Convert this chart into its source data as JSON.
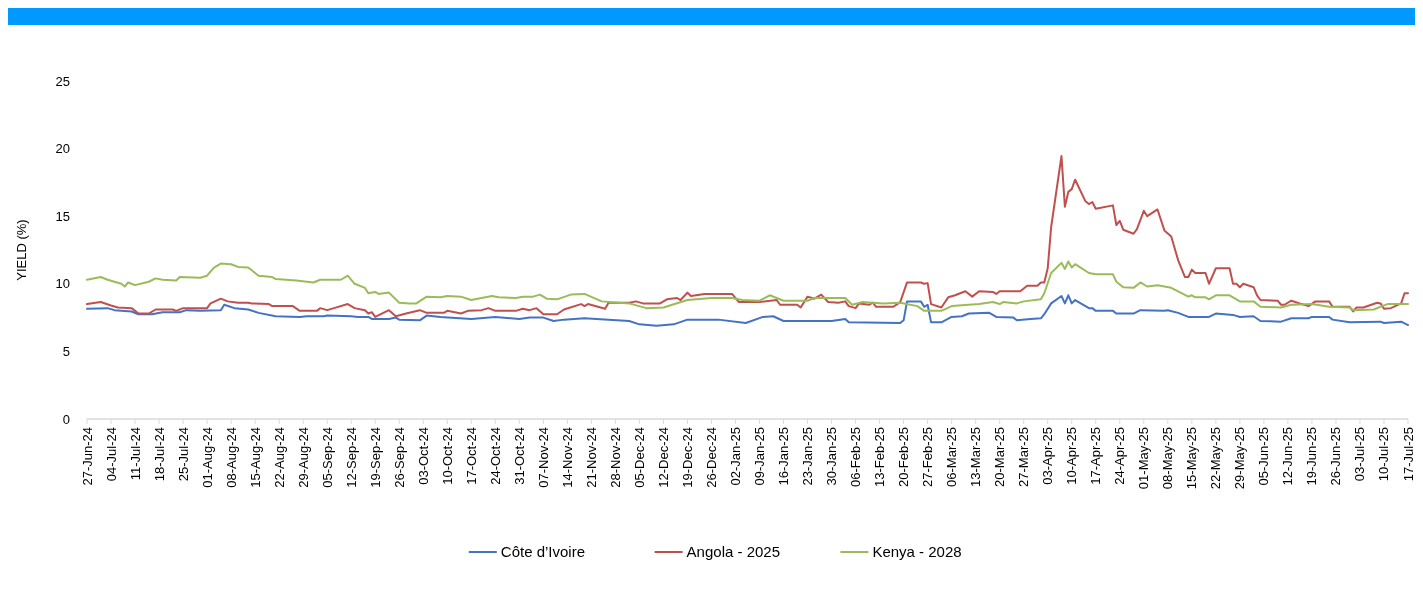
{
  "chart_data": {
    "type": "line",
    "ylabel": "YIELD (%)",
    "ylim": [
      0,
      25
    ],
    "yticks": [
      0,
      5,
      10,
      15,
      20,
      25
    ],
    "xlim": [
      "2024-06-27",
      "2025-07-17"
    ],
    "xticks": [
      {
        "value": "2024-06-27",
        "label": "27-Jun-24"
      },
      {
        "value": "2024-07-04",
        "label": "04-Jul-24"
      },
      {
        "value": "2024-07-11",
        "label": "11-Jul-24"
      },
      {
        "value": "2024-07-18",
        "label": "18-Jul-24"
      },
      {
        "value": "2024-07-25",
        "label": "25-Jul-24"
      },
      {
        "value": "2024-08-01",
        "label": "01-Aug-24"
      },
      {
        "value": "2024-08-08",
        "label": "08-Aug-24"
      },
      {
        "value": "2024-08-15",
        "label": "15-Aug-24"
      },
      {
        "value": "2024-08-22",
        "label": "22-Aug-24"
      },
      {
        "value": "2024-08-29",
        "label": "29-Aug-24"
      },
      {
        "value": "2024-09-05",
        "label": "05-Sep-24"
      },
      {
        "value": "2024-09-12",
        "label": "12-Sep-24"
      },
      {
        "value": "2024-09-19",
        "label": "19-Sep-24"
      },
      {
        "value": "2024-09-26",
        "label": "26-Sep-24"
      },
      {
        "value": "2024-10-03",
        "label": "03-Oct-24"
      },
      {
        "value": "2024-10-10",
        "label": "10-Oct-24"
      },
      {
        "value": "2024-10-17",
        "label": "17-Oct-24"
      },
      {
        "value": "2024-10-24",
        "label": "24-Oct-24"
      },
      {
        "value": "2024-10-31",
        "label": "31-Oct-24"
      },
      {
        "value": "2024-11-07",
        "label": "07-Nov-24"
      },
      {
        "value": "2024-11-14",
        "label": "14-Nov-24"
      },
      {
        "value": "2024-11-21",
        "label": "21-Nov-24"
      },
      {
        "value": "2024-11-28",
        "label": "28-Nov-24"
      },
      {
        "value": "2024-12-05",
        "label": "05-Dec-24"
      },
      {
        "value": "2024-12-12",
        "label": "12-Dec-24"
      },
      {
        "value": "2024-12-19",
        "label": "19-Dec-24"
      },
      {
        "value": "2024-12-26",
        "label": "26-Dec-24"
      },
      {
        "value": "2025-01-02",
        "label": "02-Jan-25"
      },
      {
        "value": "2025-01-09",
        "label": "09-Jan-25"
      },
      {
        "value": "2025-01-16",
        "label": "16-Jan-25"
      },
      {
        "value": "2025-01-23",
        "label": "23-Jan-25"
      },
      {
        "value": "2025-01-30",
        "label": "30-Jan-25"
      },
      {
        "value": "2025-02-06",
        "label": "06-Feb-25"
      },
      {
        "value": "2025-02-13",
        "label": "13-Feb-25"
      },
      {
        "value": "2025-02-20",
        "label": "20-Feb-25"
      },
      {
        "value": "2025-02-27",
        "label": "27-Feb-25"
      },
      {
        "value": "2025-03-06",
        "label": "06-Mar-25"
      },
      {
        "value": "2025-03-13",
        "label": "13-Mar-25"
      },
      {
        "value": "2025-03-20",
        "label": "20-Mar-25"
      },
      {
        "value": "2025-03-27",
        "label": "27-Mar-25"
      },
      {
        "value": "2025-04-03",
        "label": "03-Apr-25"
      },
      {
        "value": "2025-04-10",
        "label": "10-Apr-25"
      },
      {
        "value": "2025-04-17",
        "label": "17-Apr-25"
      },
      {
        "value": "2025-04-24",
        "label": "24-Apr-25"
      },
      {
        "value": "2025-05-01",
        "label": "01-May-25"
      },
      {
        "value": "2025-05-08",
        "label": "08-May-25"
      },
      {
        "value": "2025-05-15",
        "label": "15-May-25"
      },
      {
        "value": "2025-05-22",
        "label": "22-May-25"
      },
      {
        "value": "2025-05-29",
        "label": "29-May-25"
      },
      {
        "value": "2025-06-05",
        "label": "05-Jun-25"
      },
      {
        "value": "2025-06-12",
        "label": "12-Jun-25"
      },
      {
        "value": "2025-06-19",
        "label": "19-Jun-25"
      },
      {
        "value": "2025-06-26",
        "label": "26-Jun-25"
      },
      {
        "value": "2025-07-03",
        "label": "03-Jul-25"
      },
      {
        "value": "2025-07-10",
        "label": "10-Jul-25"
      },
      {
        "value": "2025-07-17",
        "label": "17-Jul-25"
      }
    ],
    "grid": false,
    "legend": "bottom",
    "marker": "none",
    "line_style": "solid",
    "series": [
      {
        "name": "Côte d’Ivoire",
        "color": "#4472c4",
        "x": [
          "2024-06-27",
          "2024-07-03",
          "2024-07-05",
          "2024-07-10",
          "2024-07-12",
          "2024-07-16",
          "2024-07-19",
          "2024-07-24",
          "2024-07-26",
          "2024-07-30",
          "2024-08-05",
          "2024-08-06",
          "2024-08-09",
          "2024-08-13",
          "2024-08-16",
          "2024-08-21",
          "2024-08-28",
          "2024-08-30",
          "2024-09-04",
          "2024-09-05",
          "2024-09-12",
          "2024-09-14",
          "2024-09-17",
          "2024-09-18",
          "2024-09-23",
          "2024-09-25",
          "2024-09-26",
          "2024-10-02",
          "2024-10-04",
          "2024-10-08",
          "2024-10-17",
          "2024-10-24",
          "2024-10-31",
          "2024-11-03",
          "2024-11-07",
          "2024-11-10",
          "2024-11-13",
          "2024-11-19",
          "2024-11-26",
          "2024-12-02",
          "2024-12-05",
          "2024-12-10",
          "2024-12-15",
          "2024-12-19",
          "2024-12-28",
          "2025-01-05",
          "2025-01-10",
          "2025-01-13",
          "2025-01-16",
          "2025-01-30",
          "2025-02-03",
          "2025-02-04",
          "2025-02-19",
          "2025-02-20",
          "2025-02-21",
          "2025-02-25",
          "2025-02-26",
          "2025-02-27",
          "2025-02-28",
          "2025-03-03",
          "2025-03-06",
          "2025-03-09",
          "2025-03-11",
          "2025-03-17",
          "2025-03-19",
          "2025-03-24",
          "2025-03-25",
          "2025-03-29",
          "2025-04-01",
          "2025-04-02",
          "2025-04-04",
          "2025-04-07",
          "2025-04-08",
          "2025-04-09",
          "2025-04-10",
          "2025-04-11",
          "2025-04-15",
          "2025-04-16",
          "2025-04-17",
          "2025-04-22",
          "2025-04-23",
          "2025-04-28",
          "2025-04-30",
          "2025-05-07",
          "2025-05-08",
          "2025-05-11",
          "2025-05-14",
          "2025-05-20",
          "2025-05-22",
          "2025-05-27",
          "2025-05-29",
          "2025-06-02",
          "2025-06-04",
          "2025-06-10",
          "2025-06-13",
          "2025-06-18",
          "2025-06-19",
          "2025-06-24",
          "2025-06-25",
          "2025-06-30",
          "2025-07-09",
          "2025-07-10",
          "2025-07-15",
          "2025-07-17"
        ],
        "values": [
          8.15,
          8.2,
          8.05,
          7.95,
          7.75,
          7.75,
          7.9,
          7.9,
          8.05,
          8.0,
          8.05,
          8.45,
          8.2,
          8.1,
          7.85,
          7.6,
          7.55,
          7.6,
          7.6,
          7.65,
          7.6,
          7.55,
          7.55,
          7.4,
          7.4,
          7.5,
          7.35,
          7.3,
          7.65,
          7.55,
          7.4,
          7.55,
          7.4,
          7.5,
          7.5,
          7.25,
          7.35,
          7.45,
          7.35,
          7.25,
          7.0,
          6.9,
          7.0,
          7.35,
          7.35,
          7.1,
          7.55,
          7.6,
          7.25,
          7.25,
          7.4,
          7.15,
          7.1,
          7.3,
          8.7,
          8.7,
          8.3,
          8.45,
          7.15,
          7.15,
          7.55,
          7.6,
          7.8,
          7.85,
          7.55,
          7.5,
          7.3,
          7.4,
          7.45,
          7.75,
          8.55,
          9.1,
          8.55,
          9.15,
          8.55,
          8.8,
          8.2,
          8.2,
          8.0,
          8.0,
          7.8,
          7.8,
          8.05,
          8.0,
          8.05,
          7.85,
          7.55,
          7.55,
          7.8,
          7.7,
          7.55,
          7.6,
          7.25,
          7.2,
          7.45,
          7.45,
          7.55,
          7.55,
          7.35,
          7.15,
          7.2,
          7.1,
          7.2,
          6.95
        ]
      },
      {
        "name": "Angola - 2025",
        "color": "#c0504d",
        "x": [
          "2024-06-27",
          "2024-07-01",
          "2024-07-04",
          "2024-07-06",
          "2024-07-10",
          "2024-07-12",
          "2024-07-15",
          "2024-07-17",
          "2024-07-22",
          "2024-07-23",
          "2024-07-25",
          "2024-08-01",
          "2024-08-02",
          "2024-08-05",
          "2024-08-07",
          "2024-08-10",
          "2024-08-13",
          "2024-08-14",
          "2024-08-19",
          "2024-08-20",
          "2024-08-26",
          "2024-08-28",
          "2024-09-02",
          "2024-09-03",
          "2024-09-05",
          "2024-09-07",
          "2024-09-11",
          "2024-09-13",
          "2024-09-16",
          "2024-09-17",
          "2024-09-18",
          "2024-09-19",
          "2024-09-23",
          "2024-09-25",
          "2024-09-28",
          "2024-10-02",
          "2024-10-04",
          "2024-10-09",
          "2024-10-10",
          "2024-10-14",
          "2024-10-16",
          "2024-10-20",
          "2024-10-22",
          "2024-10-24",
          "2024-10-30",
          "2024-11-01",
          "2024-11-03",
          "2024-11-05",
          "2024-11-07",
          "2024-11-11",
          "2024-11-13",
          "2024-11-18",
          "2024-11-19",
          "2024-11-20",
          "2024-11-25",
          "2024-11-26",
          "2024-12-02",
          "2024-12-04",
          "2024-12-06",
          "2024-12-11",
          "2024-12-13",
          "2024-12-16",
          "2024-12-17",
          "2024-12-19",
          "2024-12-20",
          "2024-12-24",
          "2025-01-01",
          "2025-01-03",
          "2025-01-09",
          "2025-01-14",
          "2025-01-15",
          "2025-01-20",
          "2025-01-21",
          "2025-01-23",
          "2025-01-25",
          "2025-01-27",
          "2025-01-29",
          "2025-02-01",
          "2025-02-03",
          "2025-02-04",
          "2025-02-06",
          "2025-02-07",
          "2025-02-10",
          "2025-02-11",
          "2025-02-12",
          "2025-02-17",
          "2025-02-19",
          "2025-02-21",
          "2025-02-25",
          "2025-02-26",
          "2025-02-27",
          "2025-02-28",
          "2025-03-03",
          "2025-03-05",
          "2025-03-07",
          "2025-03-10",
          "2025-03-12",
          "2025-03-14",
          "2025-03-18",
          "2025-03-19",
          "2025-03-20",
          "2025-03-26",
          "2025-03-28",
          "2025-03-31",
          "2025-04-01",
          "2025-04-02",
          "2025-04-03",
          "2025-04-04",
          "2025-04-07",
          "2025-04-08",
          "2025-04-09",
          "2025-04-10",
          "2025-04-11",
          "2025-04-14",
          "2025-04-15",
          "2025-04-16",
          "2025-04-17",
          "2025-04-22",
          "2025-04-23",
          "2025-04-24",
          "2025-04-25",
          "2025-04-28",
          "2025-04-29",
          "2025-05-01",
          "2025-05-02",
          "2025-05-05",
          "2025-05-07",
          "2025-05-09",
          "2025-05-11",
          "2025-05-13",
          "2025-05-14",
          "2025-05-15",
          "2025-05-16",
          "2025-05-19",
          "2025-05-20",
          "2025-05-22",
          "2025-05-26",
          "2025-05-27",
          "2025-05-28",
          "2025-05-29",
          "2025-05-30",
          "2025-06-02",
          "2025-06-03",
          "2025-06-04",
          "2025-06-09",
          "2025-06-10",
          "2025-06-11",
          "2025-06-13",
          "2025-06-16",
          "2025-06-18",
          "2025-06-20",
          "2025-06-24",
          "2025-06-25",
          "2025-06-30",
          "2025-07-01",
          "2025-07-02",
          "2025-07-04",
          "2025-07-08",
          "2025-07-09",
          "2025-07-10",
          "2025-07-12",
          "2025-07-15",
          "2025-07-16",
          "2025-07-17"
        ],
        "values": [
          8.5,
          8.65,
          8.4,
          8.25,
          8.2,
          7.8,
          7.8,
          8.1,
          8.1,
          8.0,
          8.2,
          8.2,
          8.55,
          8.9,
          8.7,
          8.6,
          8.6,
          8.55,
          8.5,
          8.35,
          8.35,
          8.0,
          8.0,
          8.2,
          8.05,
          8.2,
          8.5,
          8.2,
          8.05,
          7.8,
          7.9,
          7.55,
          8.05,
          7.6,
          7.8,
          8.05,
          7.85,
          7.85,
          8.0,
          7.8,
          8.0,
          8.05,
          8.2,
          8.0,
          8.0,
          8.15,
          8.05,
          8.2,
          7.75,
          7.75,
          8.1,
          8.5,
          8.35,
          8.5,
          8.15,
          8.6,
          8.6,
          8.7,
          8.55,
          8.55,
          8.85,
          8.95,
          8.8,
          9.35,
          9.1,
          9.25,
          9.25,
          8.65,
          8.65,
          8.8,
          8.45,
          8.45,
          8.25,
          9.05,
          8.9,
          9.2,
          8.65,
          8.6,
          8.7,
          8.35,
          8.2,
          8.55,
          8.45,
          8.6,
          8.3,
          8.3,
          8.65,
          10.1,
          10.1,
          10.0,
          10.05,
          8.5,
          8.25,
          9.0,
          9.15,
          9.45,
          9.05,
          9.45,
          9.4,
          9.25,
          9.45,
          9.45,
          9.85,
          9.85,
          10.1,
          10.1,
          11.15,
          14.2,
          19.45,
          15.7,
          16.8,
          17.0,
          17.7,
          16.1,
          15.9,
          16.05,
          15.55,
          15.8,
          14.35,
          14.65,
          14.0,
          13.7,
          14.05,
          15.4,
          15.0,
          15.5,
          13.95,
          13.5,
          11.75,
          10.5,
          10.5,
          11.05,
          10.8,
          10.8,
          10.0,
          11.15,
          11.15,
          10.0,
          10.0,
          9.75,
          10.0,
          9.75,
          9.15,
          8.8,
          8.75,
          8.45,
          8.45,
          8.75,
          8.5,
          8.35,
          8.7,
          8.7,
          8.3,
          8.3,
          7.95,
          8.25,
          8.25,
          8.6,
          8.55,
          8.15,
          8.2,
          8.55,
          9.3,
          9.3
        ]
      },
      {
        "name": "Kenya -  2028",
        "color": "#9bbb59",
        "x": [
          "2024-06-27",
          "2024-07-01",
          "2024-07-03",
          "2024-07-07",
          "2024-07-08",
          "2024-07-09",
          "2024-07-11",
          "2024-07-15",
          "2024-07-17",
          "2024-07-19",
          "2024-07-23",
          "2024-07-24",
          "2024-07-30",
          "2024-08-01",
          "2024-08-03",
          "2024-08-05",
          "2024-08-08",
          "2024-08-10",
          "2024-08-13",
          "2024-08-15",
          "2024-08-16",
          "2024-08-20",
          "2024-08-21",
          "2024-08-27",
          "2024-09-01",
          "2024-09-03",
          "2024-09-09",
          "2024-09-11",
          "2024-09-13",
          "2024-09-16",
          "2024-09-17",
          "2024-09-19",
          "2024-09-20",
          "2024-09-23",
          "2024-09-26",
          "2024-09-29",
          "2024-10-01",
          "2024-10-04",
          "2024-10-08",
          "2024-10-10",
          "2024-10-14",
          "2024-10-17",
          "2024-10-23",
          "2024-10-25",
          "2024-10-30",
          "2024-11-01",
          "2024-11-04",
          "2024-11-06",
          "2024-11-08",
          "2024-11-11",
          "2024-11-15",
          "2024-11-19",
          "2024-11-24",
          "2024-12-02",
          "2024-12-07",
          "2024-12-12",
          "2024-12-19",
          "2024-12-26",
          "2025-01-01",
          "2025-01-04",
          "2025-01-09",
          "2025-01-12",
          "2025-01-16",
          "2025-01-23",
          "2025-01-25",
          "2025-02-03",
          "2025-02-05",
          "2025-02-08",
          "2025-02-14",
          "2025-02-19",
          "2025-02-24",
          "2025-02-26",
          "2025-03-03",
          "2025-03-06",
          "2025-03-14",
          "2025-03-18",
          "2025-03-20",
          "2025-03-21",
          "2025-03-25",
          "2025-03-27",
          "2025-04-01",
          "2025-04-02",
          "2025-04-04",
          "2025-04-07",
          "2025-04-08",
          "2025-04-09",
          "2025-04-10",
          "2025-04-11",
          "2025-04-15",
          "2025-04-17",
          "2025-04-22",
          "2025-04-23",
          "2025-04-25",
          "2025-04-28",
          "2025-04-30",
          "2025-05-02",
          "2025-05-05",
          "2025-05-09",
          "2025-05-14",
          "2025-05-15",
          "2025-05-16",
          "2025-05-19",
          "2025-05-20",
          "2025-05-22",
          "2025-05-26",
          "2025-05-29",
          "2025-06-02",
          "2025-06-04",
          "2025-06-10",
          "2025-06-13",
          "2025-06-19",
          "2025-06-24",
          "2025-06-30",
          "2025-07-01",
          "2025-07-07",
          "2025-07-11",
          "2025-07-17"
        ],
        "values": [
          10.3,
          10.5,
          10.3,
          10.0,
          9.8,
          10.1,
          9.9,
          10.15,
          10.4,
          10.3,
          10.25,
          10.5,
          10.45,
          10.6,
          11.2,
          11.5,
          11.45,
          11.25,
          11.2,
          10.8,
          10.6,
          10.5,
          10.35,
          10.25,
          10.1,
          10.3,
          10.3,
          10.6,
          10.0,
          9.7,
          9.3,
          9.4,
          9.25,
          9.35,
          8.6,
          8.55,
          8.55,
          9.05,
          9.0,
          9.1,
          9.05,
          8.8,
          9.1,
          9.0,
          8.95,
          9.05,
          9.05,
          9.2,
          8.9,
          8.85,
          9.2,
          9.25,
          8.7,
          8.55,
          8.2,
          8.25,
          8.8,
          8.95,
          8.95,
          8.8,
          8.75,
          9.15,
          8.75,
          8.75,
          8.95,
          8.95,
          8.45,
          8.65,
          8.55,
          8.6,
          8.35,
          8.0,
          8.0,
          8.35,
          8.5,
          8.65,
          8.5,
          8.65,
          8.55,
          8.7,
          8.85,
          9.3,
          10.8,
          11.55,
          11.1,
          11.65,
          11.2,
          11.45,
          10.8,
          10.7,
          10.7,
          10.15,
          9.75,
          9.7,
          10.1,
          9.8,
          9.9,
          9.7,
          9.05,
          9.15,
          9.0,
          9.0,
          8.85,
          9.15,
          9.15,
          8.7,
          8.7,
          8.3,
          8.25,
          8.45,
          8.5,
          8.3,
          8.25,
          8.05,
          8.1,
          8.5,
          8.5
        ]
      }
    ]
  }
}
